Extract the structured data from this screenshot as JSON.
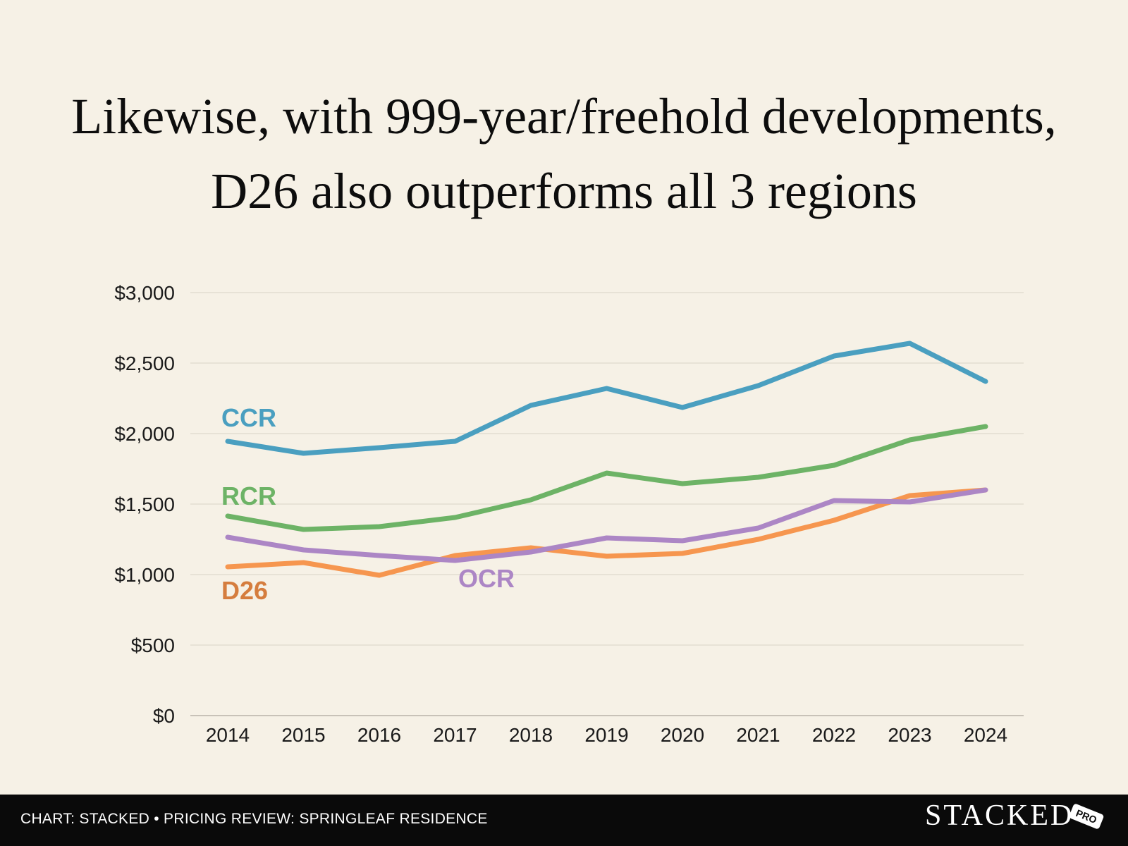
{
  "chart_data": {
    "type": "line",
    "title": "Likewise, with 999-year/freehold developments, D26 also outperforms all 3 regions",
    "categories": [
      "2014",
      "2015",
      "2016",
      "2017",
      "2018",
      "2019",
      "2020",
      "2021",
      "2022",
      "2023",
      "2024"
    ],
    "ylim": [
      0,
      3000
    ],
    "yticks": [
      0,
      500,
      1000,
      1500,
      2000,
      2500,
      3000
    ],
    "ytick_labels": [
      "$0",
      "$500",
      "$1,000",
      "$1,500",
      "$2,000",
      "$2,500",
      "$3,000"
    ],
    "grid": true,
    "xlabel": "",
    "ylabel": "",
    "series": [
      {
        "name": "CCR",
        "color": "#4a9fc0",
        "label_color": "#4a9fc0",
        "values": [
          1945,
          1860,
          1900,
          1945,
          2200,
          2320,
          2185,
          2340,
          2550,
          2640,
          2370
        ]
      },
      {
        "name": "RCR",
        "color": "#6db366",
        "label_color": "#6db366",
        "values": [
          1415,
          1320,
          1340,
          1405,
          1530,
          1720,
          1645,
          1690,
          1775,
          1955,
          2050
        ]
      },
      {
        "name": "OCR",
        "color": "#ac86c5",
        "label_color": "#ac86c5",
        "values": [
          1265,
          1175,
          1135,
          1100,
          1160,
          1260,
          1240,
          1330,
          1525,
          1515,
          1600
        ]
      },
      {
        "name": "D26",
        "color": "#f6964f",
        "label_color": "#d57d3e",
        "values": [
          1055,
          1085,
          995,
          1135,
          1190,
          1130,
          1150,
          1250,
          1385,
          1560,
          1600
        ]
      }
    ]
  },
  "footer": {
    "source": "CHART: STACKED • PRICING REVIEW: SPRINGLEAF RESIDENCE",
    "brand": "STACKED",
    "badge": "PRO"
  }
}
